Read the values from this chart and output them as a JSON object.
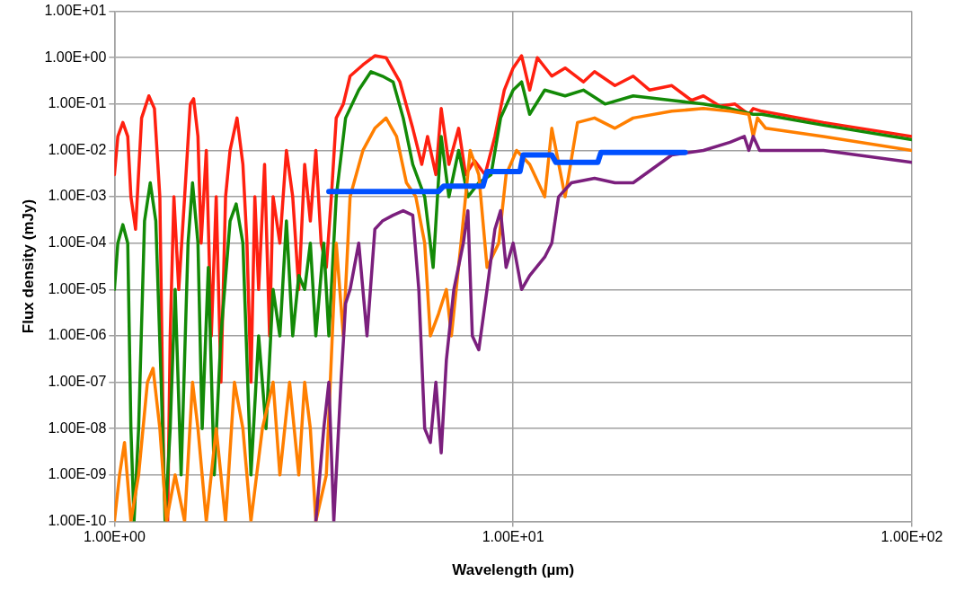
{
  "chart_data": {
    "type": "line",
    "xlabel": "Wavelength (µm)",
    "ylabel": "Flux density (mJy)",
    "log": "xy",
    "grid": true,
    "legend": false,
    "marker": "none",
    "line_style": "solid",
    "xlim": [
      1,
      100
    ],
    "xticks": [
      {
        "value": 1,
        "label": "1.00E+00"
      },
      {
        "value": 10,
        "label": "1.00E+01"
      },
      {
        "value": 100,
        "label": "1.00E+02"
      }
    ],
    "ylim": [
      1e-10,
      10
    ],
    "yticks": [
      {
        "value": 1e-10,
        "label": "1.00E-10"
      },
      {
        "value": 1e-09,
        "label": "1.00E-09"
      },
      {
        "value": 1e-08,
        "label": "1.00E-08"
      },
      {
        "value": 1e-07,
        "label": "1.00E-07"
      },
      {
        "value": 1e-06,
        "label": "1.00E-06"
      },
      {
        "value": 1e-05,
        "label": "1.00E-05"
      },
      {
        "value": 0.0001,
        "label": "1.00E-04"
      },
      {
        "value": 0.001,
        "label": "1.00E-03"
      },
      {
        "value": 0.01,
        "label": "1.00E-02"
      },
      {
        "value": 0.1,
        "label": "1.00E-01"
      },
      {
        "value": 1,
        "label": "1.00E+00"
      },
      {
        "value": 10,
        "label": "1.00E+01"
      }
    ],
    "series": [
      {
        "color": "#ff2010",
        "x": [
          1.0,
          1.02,
          1.05,
          1.08,
          1.1,
          1.13,
          1.17,
          1.22,
          1.26,
          1.3,
          1.33,
          1.36,
          1.38,
          1.41,
          1.45,
          1.5,
          1.55,
          1.58,
          1.62,
          1.65,
          1.7,
          1.75,
          1.8,
          1.85,
          1.9,
          1.95,
          2.03,
          2.1,
          2.15,
          2.2,
          2.25,
          2.3,
          2.38,
          2.45,
          2.5,
          2.6,
          2.7,
          2.8,
          2.9,
          3.0,
          3.1,
          3.2,
          3.3,
          3.4,
          3.5,
          3.6,
          3.75,
          3.9,
          4.2,
          4.5,
          4.8,
          5.2,
          5.6,
          5.9,
          6.1,
          6.4,
          6.6,
          6.9,
          7.3,
          7.6,
          8.0,
          8.5,
          9.0,
          9.5,
          10.0,
          10.5,
          11,
          11.5,
          12.5,
          13.5,
          15,
          16,
          18,
          20,
          22,
          25,
          28,
          30,
          33,
          36,
          39,
          40,
          42,
          60,
          100
        ],
        "values": [
          0.003,
          0.02,
          0.04,
          0.02,
          0.001,
          0.0002,
          0.05,
          0.15,
          0.08,
          0.001,
          1e-09,
          1e-10,
          1e-06,
          0.001,
          1e-05,
          0.001,
          0.1,
          0.13,
          0.02,
          0.0001,
          0.01,
          1e-06,
          0.001,
          1e-07,
          0.001,
          0.01,
          0.05,
          0.005,
          0.0001,
          1e-07,
          0.001,
          1e-05,
          0.005,
          1e-06,
          0.001,
          0.0001,
          0.01,
          0.001,
          1e-05,
          0.005,
          0.0003,
          0.01,
          0.0001,
          3e-05,
          0.001,
          0.05,
          0.1,
          0.4,
          0.7,
          1.1,
          1.0,
          0.3,
          0.03,
          0.005,
          0.02,
          0.003,
          0.08,
          0.005,
          0.03,
          0.003,
          0.006,
          0.003,
          0.02,
          0.2,
          0.6,
          1.1,
          0.2,
          1.0,
          0.4,
          0.6,
          0.3,
          0.5,
          0.25,
          0.4,
          0.2,
          0.25,
          0.12,
          0.15,
          0.09,
          0.1,
          0.06,
          0.08,
          0.07,
          0.04,
          0.02
        ]
      },
      {
        "color": "#138a07",
        "x": [
          1.0,
          1.02,
          1.05,
          1.08,
          1.1,
          1.12,
          1.15,
          1.19,
          1.23,
          1.27,
          1.31,
          1.34,
          1.38,
          1.42,
          1.47,
          1.53,
          1.57,
          1.62,
          1.66,
          1.72,
          1.78,
          1.85,
          1.95,
          2.02,
          2.1,
          2.2,
          2.3,
          2.4,
          2.5,
          2.6,
          2.7,
          2.8,
          2.9,
          3.0,
          3.1,
          3.2,
          3.35,
          3.45,
          3.6,
          3.8,
          4.1,
          4.4,
          4.7,
          5.0,
          5.3,
          5.6,
          6.0,
          6.3,
          6.6,
          6.9,
          7.3,
          7.7,
          8.2,
          8.8,
          9.3,
          10,
          10.5,
          11,
          12,
          13.5,
          15,
          17,
          20,
          25,
          30,
          35,
          40,
          42,
          60,
          100
        ],
        "values": [
          1e-05,
          0.0001,
          0.00025,
          0.0001,
          1e-08,
          1e-10,
          1e-08,
          0.0003,
          0.002,
          0.0003,
          1e-07,
          1e-10,
          1e-08,
          1e-05,
          1e-09,
          0.0001,
          0.002,
          0.0001,
          1e-08,
          3e-05,
          1e-09,
          1e-06,
          0.0003,
          0.0007,
          0.0001,
          1e-09,
          1e-06,
          1e-08,
          1e-05,
          1e-06,
          0.0003,
          1e-06,
          2e-05,
          1e-05,
          0.0001,
          1e-06,
          0.0001,
          1e-06,
          0.001,
          0.05,
          0.2,
          0.5,
          0.4,
          0.3,
          0.05,
          0.005,
          0.001,
          3e-05,
          0.02,
          0.001,
          0.01,
          0.001,
          0.002,
          0.003,
          0.05,
          0.2,
          0.3,
          0.06,
          0.2,
          0.15,
          0.2,
          0.1,
          0.15,
          0.12,
          0.1,
          0.08,
          0.06,
          0.06,
          0.035,
          0.017
        ]
      },
      {
        "color": "#ff7f00",
        "x": [
          1.0,
          1.03,
          1.06,
          1.1,
          1.15,
          1.21,
          1.25,
          1.3,
          1.35,
          1.42,
          1.5,
          1.57,
          1.62,
          1.7,
          1.8,
          1.9,
          2.0,
          2.1,
          2.2,
          2.35,
          2.5,
          2.6,
          2.75,
          2.9,
          3.0,
          3.1,
          3.2,
          3.4,
          3.6,
          3.75,
          3.9,
          4.2,
          4.5,
          4.8,
          5.1,
          5.4,
          5.7,
          6.0,
          6.2,
          6.5,
          6.8,
          7.0,
          7.4,
          7.8,
          8.2,
          8.6,
          9.2,
          9.6,
          10.2,
          11,
          12,
          12.5,
          13.5,
          14.5,
          16,
          18,
          20,
          25,
          30,
          35,
          39,
          40,
          41,
          43,
          60,
          100
        ],
        "values": [
          1e-10,
          1e-09,
          5e-09,
          1e-10,
          1e-09,
          1e-07,
          2e-07,
          1e-08,
          1e-10,
          1e-09,
          1e-10,
          1e-07,
          1e-08,
          1e-10,
          1e-08,
          1e-10,
          1e-07,
          1e-08,
          1e-10,
          1e-08,
          1e-07,
          1e-09,
          1e-07,
          1e-09,
          1e-07,
          1e-08,
          1e-10,
          1e-09,
          0.0001,
          1e-06,
          0.001,
          0.01,
          0.03,
          0.05,
          0.02,
          0.002,
          0.001,
          0.0001,
          1e-06,
          3e-06,
          1e-05,
          1e-06,
          0.0001,
          0.01,
          0.003,
          3e-05,
          0.0001,
          0.003,
          0.01,
          0.005,
          0.001,
          0.03,
          0.001,
          0.04,
          0.05,
          0.03,
          0.05,
          0.07,
          0.08,
          0.07,
          0.06,
          0.02,
          0.05,
          0.03,
          0.02,
          0.01
        ]
      },
      {
        "color": "#7b1f7d",
        "x": [
          3.2,
          3.35,
          3.45,
          3.55,
          3.7,
          3.8,
          3.9,
          4.1,
          4.3,
          4.5,
          4.7,
          5.0,
          5.3,
          5.6,
          5.8,
          6.0,
          6.2,
          6.4,
          6.6,
          6.8,
          7.1,
          7.5,
          7.7,
          7.9,
          8.2,
          8.6,
          9.0,
          9.3,
          9.6,
          10,
          10.5,
          11,
          12,
          12.5,
          13,
          14,
          16,
          18,
          20,
          25,
          30,
          35,
          38,
          39,
          40,
          41.5,
          60,
          100
        ],
        "values": [
          1e-10,
          1e-08,
          1e-07,
          1e-10,
          1e-07,
          5e-06,
          1e-05,
          0.0001,
          1e-06,
          0.0002,
          0.0003,
          0.0004,
          0.0005,
          0.0004,
          1e-05,
          1e-08,
          5e-09,
          1e-07,
          3e-09,
          3e-07,
          1e-05,
          0.0001,
          0.0005,
          1e-06,
          5e-07,
          1e-05,
          0.0002,
          0.0005,
          3e-05,
          0.0001,
          1e-05,
          2e-05,
          5e-05,
          0.0001,
          0.001,
          0.002,
          0.0025,
          0.002,
          0.002,
          0.008,
          0.01,
          0.015,
          0.02,
          0.01,
          0.02,
          0.01,
          0.01,
          0.0055
        ]
      },
      {
        "color": "#0050ff",
        "x": [
          3.45,
          6.5,
          6.7,
          8.4,
          8.6,
          10.4,
          10.6,
          12.5,
          12.8,
          16.3,
          16.6,
          27
        ],
        "values": [
          0.0013,
          0.0013,
          0.0017,
          0.0017,
          0.0035,
          0.0035,
          0.008,
          0.008,
          0.0055,
          0.0055,
          0.009,
          0.009
        ]
      }
    ]
  }
}
